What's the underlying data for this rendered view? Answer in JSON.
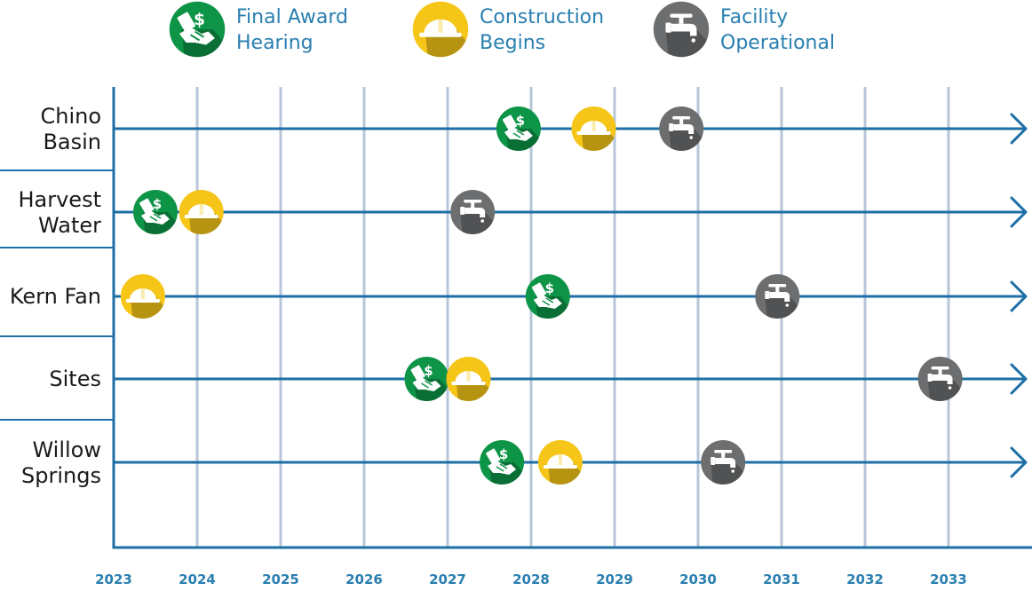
{
  "legend": [
    {
      "key": "award",
      "line1": "Final Award",
      "line2": "Hearing"
    },
    {
      "key": "construction",
      "line1": "Construction",
      "line2": "Begins"
    },
    {
      "key": "operational",
      "line1": "Facility",
      "line2": "Operational"
    }
  ],
  "colors": {
    "award": "#0e9447",
    "construction": "#f5c518",
    "operational": "#6d6e70",
    "axis": "#1d6fa5",
    "grid": "#b7c6d8",
    "legend_text": "#2a7fb0",
    "tick_text": "#2a7fb0"
  },
  "icons": {
    "award": "money-handshake-icon",
    "construction": "hard-hat-icon",
    "operational": "water-faucet-icon"
  },
  "chart_data": {
    "type": "timeline",
    "title": "",
    "xlabel": "",
    "ylabel": "",
    "xlim": [
      2023,
      2033.9
    ],
    "x_ticks": [
      "2023",
      "2024",
      "2025",
      "2026",
      "2027",
      "2028",
      "2029",
      "2030",
      "2031",
      "2032",
      "2033"
    ],
    "grid": true,
    "legend_position": "top",
    "projects": [
      {
        "line1": "Chino",
        "line2": "Basin",
        "award": 2027.85,
        "construction": 2028.75,
        "operational": 2029.8
      },
      {
        "line1": "Harvest",
        "line2": "Water",
        "award": 2023.5,
        "construction": 2024.05,
        "operational": 2027.3
      },
      {
        "line1": "Kern Fan",
        "line2": "",
        "award": 2028.2,
        "construction": 2023.35,
        "operational": 2030.95
      },
      {
        "line1": "Sites",
        "line2": "",
        "award": 2026.75,
        "construction": 2027.25,
        "operational": 2032.9
      },
      {
        "line1": "Willow",
        "line2": "Springs",
        "award": 2027.65,
        "construction": 2028.35,
        "operational": 2030.3
      }
    ]
  }
}
